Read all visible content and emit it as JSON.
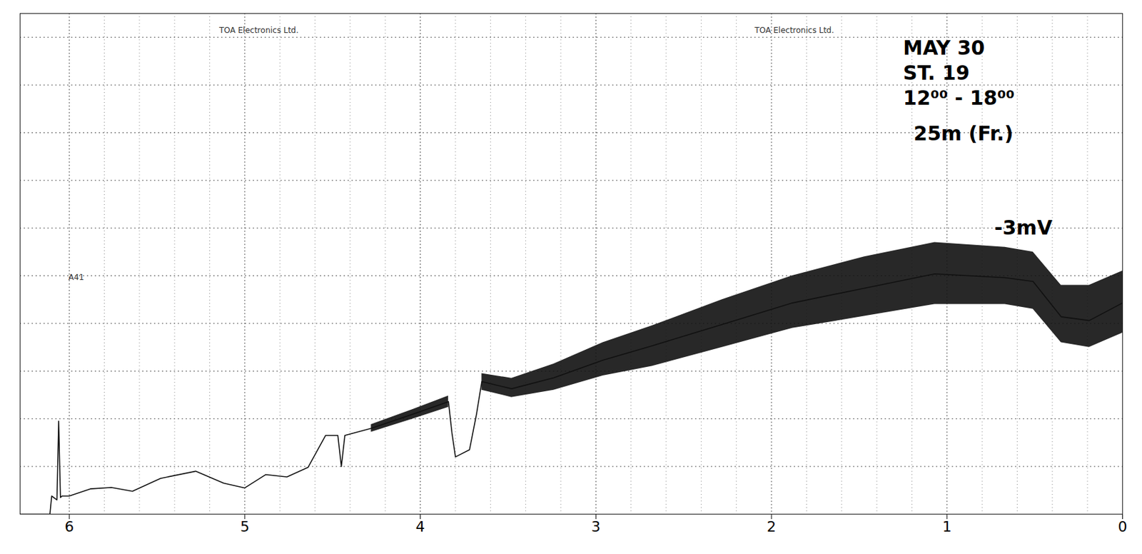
{
  "chart_data": {
    "type": "line",
    "x": [
      6.28,
      6.11,
      6.1,
      6.07,
      6.06,
      6.05,
      6.04,
      6.0,
      5.88,
      5.76,
      5.64,
      5.48,
      5.28,
      5.12,
      5.0,
      4.88,
      4.76,
      4.64,
      4.54,
      4.47,
      4.45,
      4.43,
      4.28,
      4.04,
      3.84,
      3.82,
      3.8,
      3.72,
      3.68,
      3.65,
      3.48,
      3.24,
      2.96,
      2.68,
      2.28,
      1.88,
      1.47,
      1.07,
      0.67,
      0.51,
      0.35,
      0.19,
      0.0
    ],
    "values": [
      0,
      0,
      0.38,
      0.3,
      1.95,
      0.35,
      0.38,
      0.38,
      0.53,
      0.56,
      0.48,
      0.75,
      0.9,
      0.65,
      0.55,
      0.83,
      0.78,
      0.98,
      1.65,
      1.65,
      1.0,
      1.65,
      1.8,
      2.1,
      2.36,
      1.7,
      1.2,
      1.35,
      2.1,
      2.78,
      2.63,
      2.86,
      3.23,
      3.53,
      3.98,
      4.43,
      4.74,
      5.04,
      4.96,
      4.88,
      4.14,
      4.06,
      4.43
    ],
    "low": [
      null,
      null,
      null,
      null,
      null,
      null,
      null,
      null,
      null,
      null,
      null,
      null,
      null,
      null,
      null,
      null,
      null,
      null,
      null,
      null,
      null,
      null,
      1.72,
      2.0,
      2.24,
      null,
      null,
      null,
      null,
      2.6,
      2.45,
      2.6,
      2.9,
      3.1,
      3.5,
      3.9,
      4.15,
      4.4,
      4.4,
      4.3,
      3.6,
      3.5,
      3.8
    ],
    "high": [
      null,
      null,
      null,
      null,
      null,
      null,
      null,
      null,
      null,
      null,
      null,
      null,
      null,
      null,
      null,
      null,
      null,
      null,
      null,
      null,
      null,
      null,
      1.88,
      2.2,
      2.48,
      null,
      null,
      null,
      null,
      2.95,
      2.85,
      3.15,
      3.6,
      3.95,
      4.5,
      5.0,
      5.4,
      5.7,
      5.6,
      5.5,
      4.8,
      4.8,
      5.1
    ],
    "color": "#111111",
    "xlim": [
      6.28,
      0
    ],
    "xticks": [
      6,
      5,
      4,
      3,
      2,
      1,
      0
    ],
    "ylim": [
      0,
      10.5
    ],
    "yticks": [
      0,
      1,
      2,
      3,
      4,
      5,
      6,
      7,
      8,
      9,
      10
    ],
    "grid": true,
    "tick_labels": "x",
    "annotations": [
      {
        "text": "MAY 30",
        "x": 1.25,
        "y": 9.77
      },
      {
        "text": "ST. 19",
        "x": 1.25,
        "y": 9.25
      },
      {
        "text": "12⁰⁰ - 18⁰⁰",
        "x": 1.25,
        "y": 8.72
      },
      {
        "text": "25m (Fr.)",
        "x": 1.19,
        "y": 7.97
      },
      {
        "text": "-3mV",
        "x": 0.73,
        "y": 6.0
      }
    ],
    "printed_labels": [
      {
        "text": "TOA Electronics Ltd.",
        "x": 4.92,
        "y": 10.15
      },
      {
        "text": "TOA Electronics Ltd.",
        "x": 1.87,
        "y": 10.15
      },
      {
        "text": "A41",
        "x": 5.96,
        "y": 4.96
      }
    ]
  }
}
